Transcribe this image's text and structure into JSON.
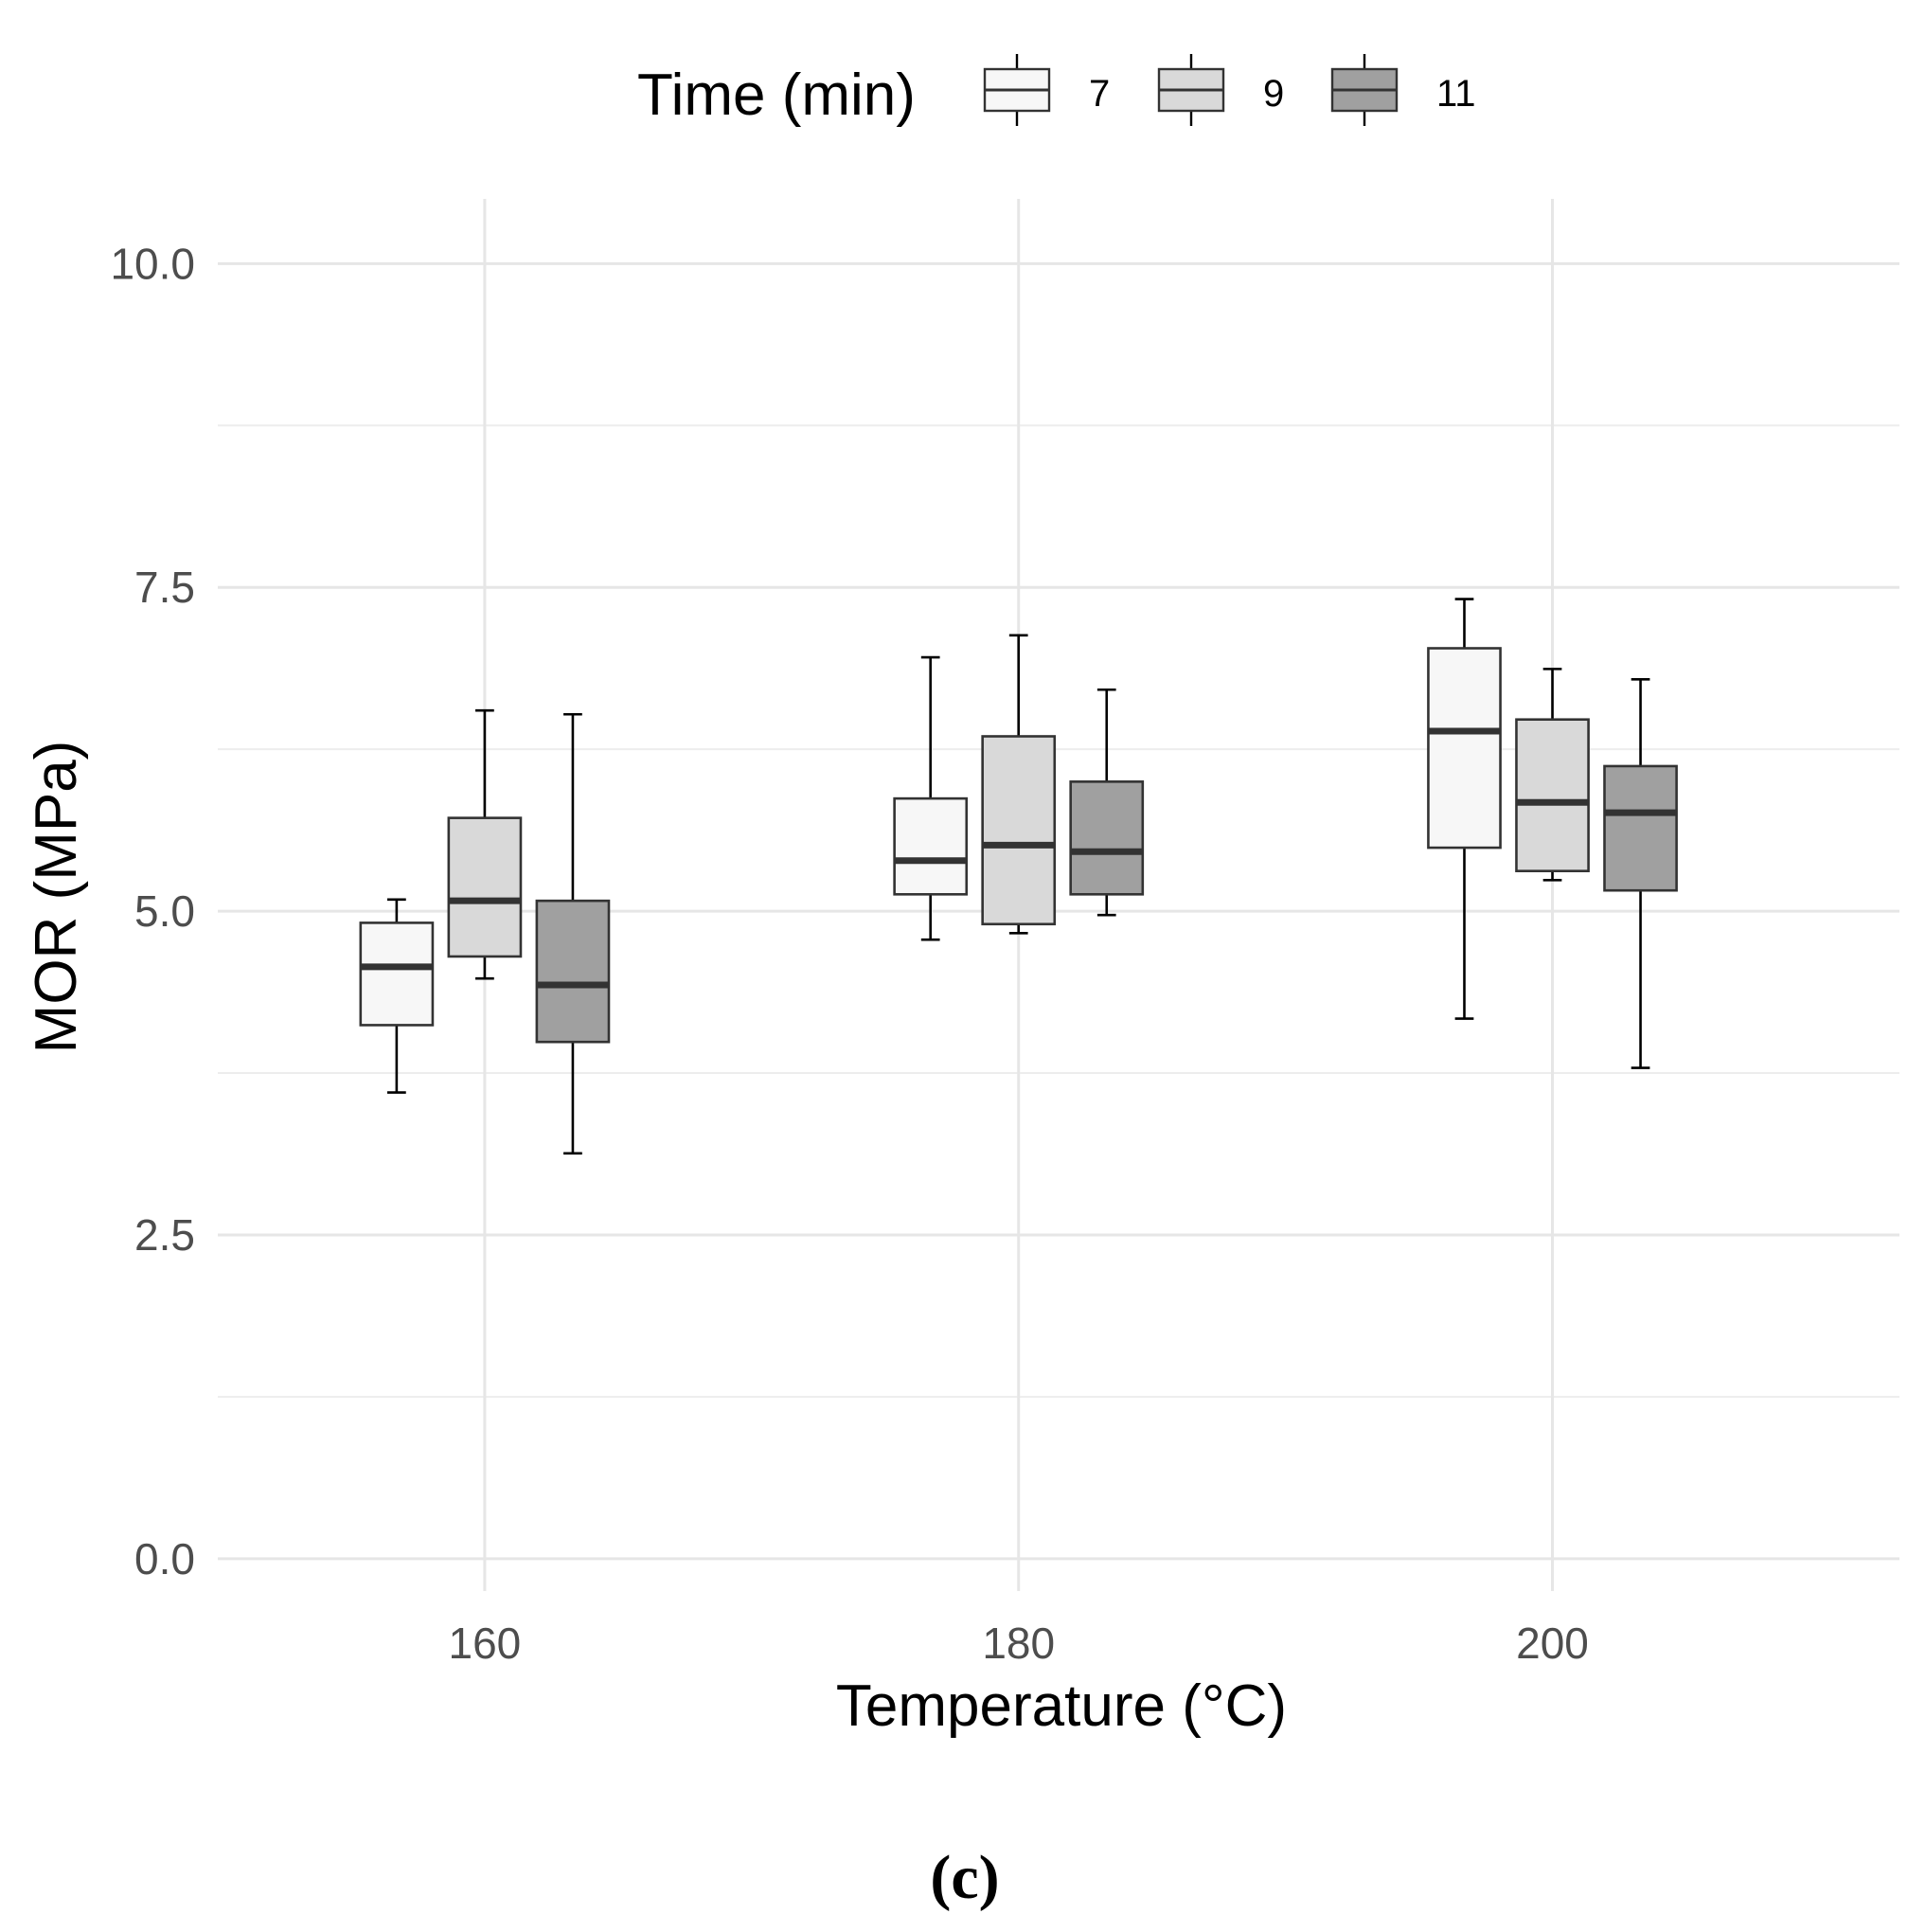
{
  "chart_data": {
    "type": "boxplot",
    "xlabel": "Temperature (°C)",
    "ylabel": "MOR (MPa)",
    "ylim": [
      -0.25,
      10.5
    ],
    "xlim": [
      150,
      213
    ],
    "yticks": [
      "0.0",
      "2.5",
      "5.0",
      "7.5",
      "10.0"
    ],
    "yticks_values": [
      0,
      2.5,
      5,
      7.5,
      10
    ],
    "yticks_minor": [
      1.25,
      3.75,
      6.25,
      8.75
    ],
    "categories": [
      "160",
      "180",
      "200"
    ],
    "category_values": [
      160,
      180,
      200
    ],
    "grid": true,
    "legend": {
      "title": "Time (min)",
      "placement": "top",
      "entries": [
        "7",
        "9",
        "11"
      ]
    },
    "series": [
      {
        "name": "7",
        "fill": "#f7f7f7",
        "boxes": [
          {
            "x": "160",
            "min": 3.6,
            "q1": 4.12,
            "median": 4.57,
            "q3": 4.91,
            "max": 5.09
          },
          {
            "x": "180",
            "min": 4.78,
            "q1": 5.13,
            "median": 5.39,
            "q3": 5.87,
            "max": 6.96
          },
          {
            "x": "200",
            "min": 4.17,
            "q1": 5.49,
            "median": 6.39,
            "q3": 7.03,
            "max": 7.41
          }
        ]
      },
      {
        "name": "9",
        "fill": "#d9d9d9",
        "boxes": [
          {
            "x": "160",
            "min": 4.48,
            "q1": 4.65,
            "median": 5.08,
            "q3": 5.72,
            "max": 6.55
          },
          {
            "x": "180",
            "min": 4.83,
            "q1": 4.9,
            "median": 5.51,
            "q3": 6.35,
            "max": 7.13
          },
          {
            "x": "200",
            "min": 5.24,
            "q1": 5.31,
            "median": 5.84,
            "q3": 6.48,
            "max": 6.87
          }
        ]
      },
      {
        "name": "11",
        "fill": "#a0a0a0",
        "boxes": [
          {
            "x": "160",
            "min": 3.13,
            "q1": 3.99,
            "median": 4.43,
            "q3": 5.08,
            "max": 6.52
          },
          {
            "x": "180",
            "min": 4.97,
            "q1": 5.13,
            "median": 5.46,
            "q3": 6.0,
            "max": 6.71
          },
          {
            "x": "200",
            "min": 3.79,
            "q1": 5.16,
            "median": 5.76,
            "q3": 6.12,
            "max": 6.79
          }
        ]
      }
    ]
  },
  "caption": "(c)"
}
